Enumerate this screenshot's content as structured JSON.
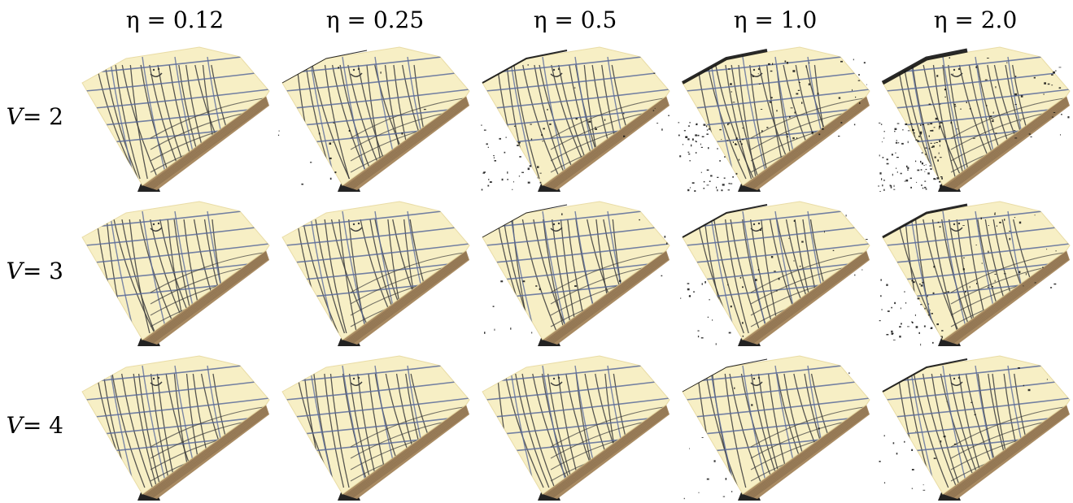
{
  "columns": [
    {
      "label": "η = 0.12",
      "eta": 0.12
    },
    {
      "label": "η = 0.25",
      "eta": 0.25
    },
    {
      "label": "η = 0.5",
      "eta": 0.5
    },
    {
      "label": "η = 1.0",
      "eta": 1.0
    },
    {
      "label": "η = 2.0",
      "eta": 2.0
    }
  ],
  "rows": [
    {
      "label_var": "V",
      "label_rest": " = 2",
      "V": 2,
      "noise": [
        0.0,
        0.1,
        0.35,
        0.75,
        1.0
      ]
    },
    {
      "label_var": "V",
      "label_rest": " = 3",
      "V": 3,
      "noise": [
        0.0,
        0.0,
        0.1,
        0.25,
        0.55
      ]
    },
    {
      "label_var": "V",
      "label_rest": " = 4",
      "V": 4,
      "noise": [
        0.0,
        0.0,
        0.0,
        0.08,
        0.15
      ]
    }
  ],
  "colors": {
    "paper": "#f7efc5",
    "paper_edge": "#e9dca6",
    "pencil_dark": "#3a3a3a",
    "pencil_blue": "#5b6b9a",
    "wood": "#a88a62",
    "shadow": "#222222",
    "noise": "#111111"
  }
}
